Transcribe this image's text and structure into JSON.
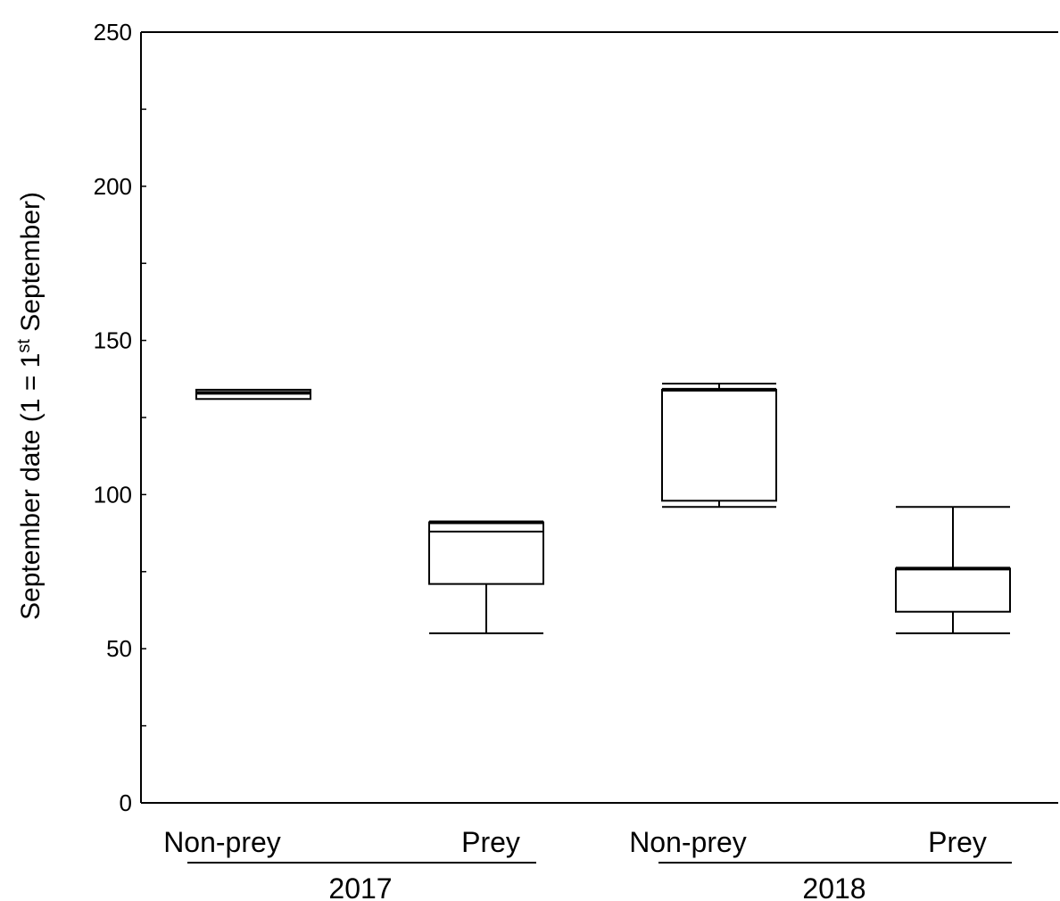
{
  "chart_data": {
    "type": "box",
    "ylabel_parts": {
      "before": "September date (1 = 1",
      "superscript": "st",
      "after": " September)"
    },
    "ylim": [
      0,
      250
    ],
    "yticks": [
      0,
      50,
      100,
      150,
      200,
      250
    ],
    "ytick_labels": [
      "0",
      "50",
      "100",
      "150",
      "200",
      "250"
    ],
    "grid": false,
    "groups": [
      {
        "label": "2017",
        "boxes": [
          {
            "category": "Non-prey",
            "min": 131,
            "q1": 131,
            "median": 133,
            "q3": 134,
            "max": 134
          },
          {
            "category": "Prey",
            "min": 55,
            "q1": 71,
            "median": 91,
            "q3": 91,
            "max": 91,
            "extra_line": 88
          }
        ]
      },
      {
        "label": "2018",
        "boxes": [
          {
            "category": "Non-prey",
            "min": 96,
            "q1": 98,
            "median": 134,
            "q3": 134,
            "max": 136
          },
          {
            "category": "Prey",
            "min": 55,
            "q1": 62,
            "median": 76,
            "q3": 76,
            "max": 96
          }
        ]
      }
    ]
  }
}
